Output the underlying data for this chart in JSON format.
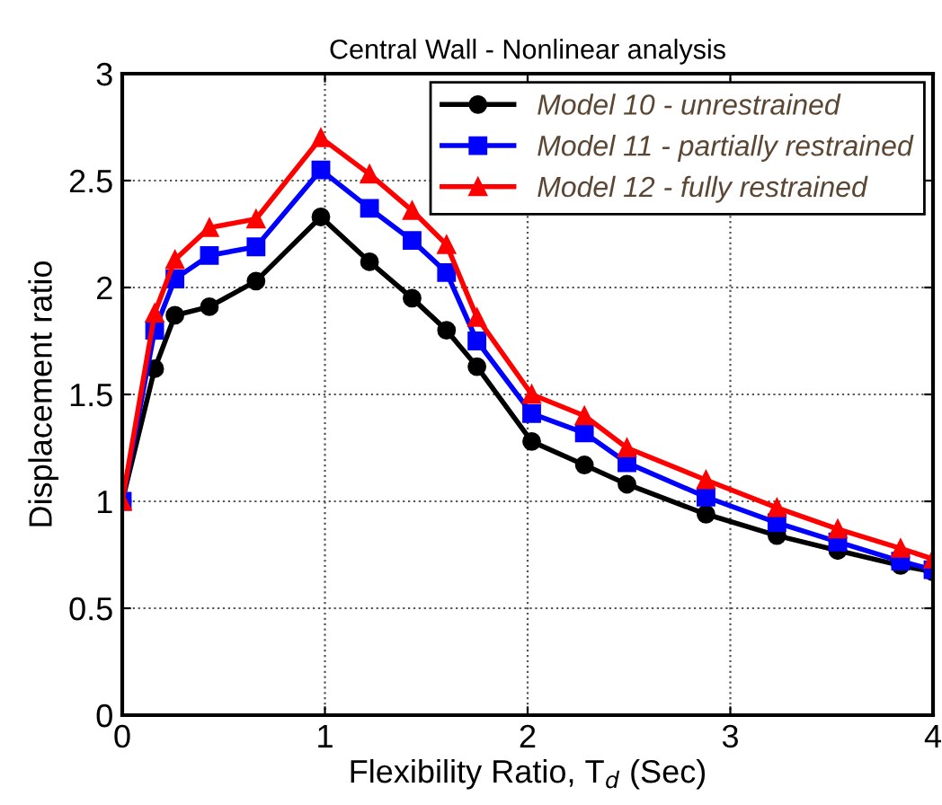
{
  "chart_data": {
    "type": "line",
    "title": "Central Wall - Nonlinear analysis",
    "xlabel": "Flexibility Ratio, T$_{d}$ (Sec)",
    "ylabel": "Displacement ratio",
    "x": [
      0,
      0.16,
      0.26,
      0.43,
      0.66,
      0.98,
      1.22,
      1.43,
      1.6,
      1.75,
      2.02,
      2.28,
      2.49,
      2.88,
      3.23,
      3.53,
      3.84,
      4.0
    ],
    "series": [
      {
        "name": "Model 10 - unrestrained",
        "color": "#000000",
        "marker": "circle",
        "values": [
          1,
          1.62,
          1.87,
          1.91,
          2.03,
          2.33,
          2.12,
          1.95,
          1.8,
          1.63,
          1.28,
          1.17,
          1.08,
          0.94,
          0.84,
          0.77,
          0.7,
          0.67
        ]
      },
      {
        "name": "Model 11 - partially restrained",
        "color": "#0000ff",
        "marker": "square",
        "values": [
          1,
          1.8,
          2.04,
          2.15,
          2.19,
          2.55,
          2.37,
          2.22,
          2.07,
          1.75,
          1.41,
          1.32,
          1.18,
          1.02,
          0.9,
          0.81,
          0.72,
          0.68
        ]
      },
      {
        "name": "Model 12 - fully restrained",
        "color": "#ff0000",
        "marker": "triangle",
        "values": [
          1,
          1.88,
          2.13,
          2.28,
          2.32,
          2.7,
          2.53,
          2.36,
          2.2,
          1.86,
          1.5,
          1.4,
          1.25,
          1.1,
          0.97,
          0.87,
          0.78,
          0.73
        ]
      }
    ],
    "xlim": [
      0,
      4
    ],
    "xticks": [
      0,
      1,
      2,
      3,
      4
    ],
    "ylim": [
      0,
      3
    ],
    "yticks": [
      0,
      0.5,
      1,
      1.5,
      2,
      2.5,
      3
    ],
    "grid": true,
    "legend": "top right",
    "line_style": "solid"
  }
}
